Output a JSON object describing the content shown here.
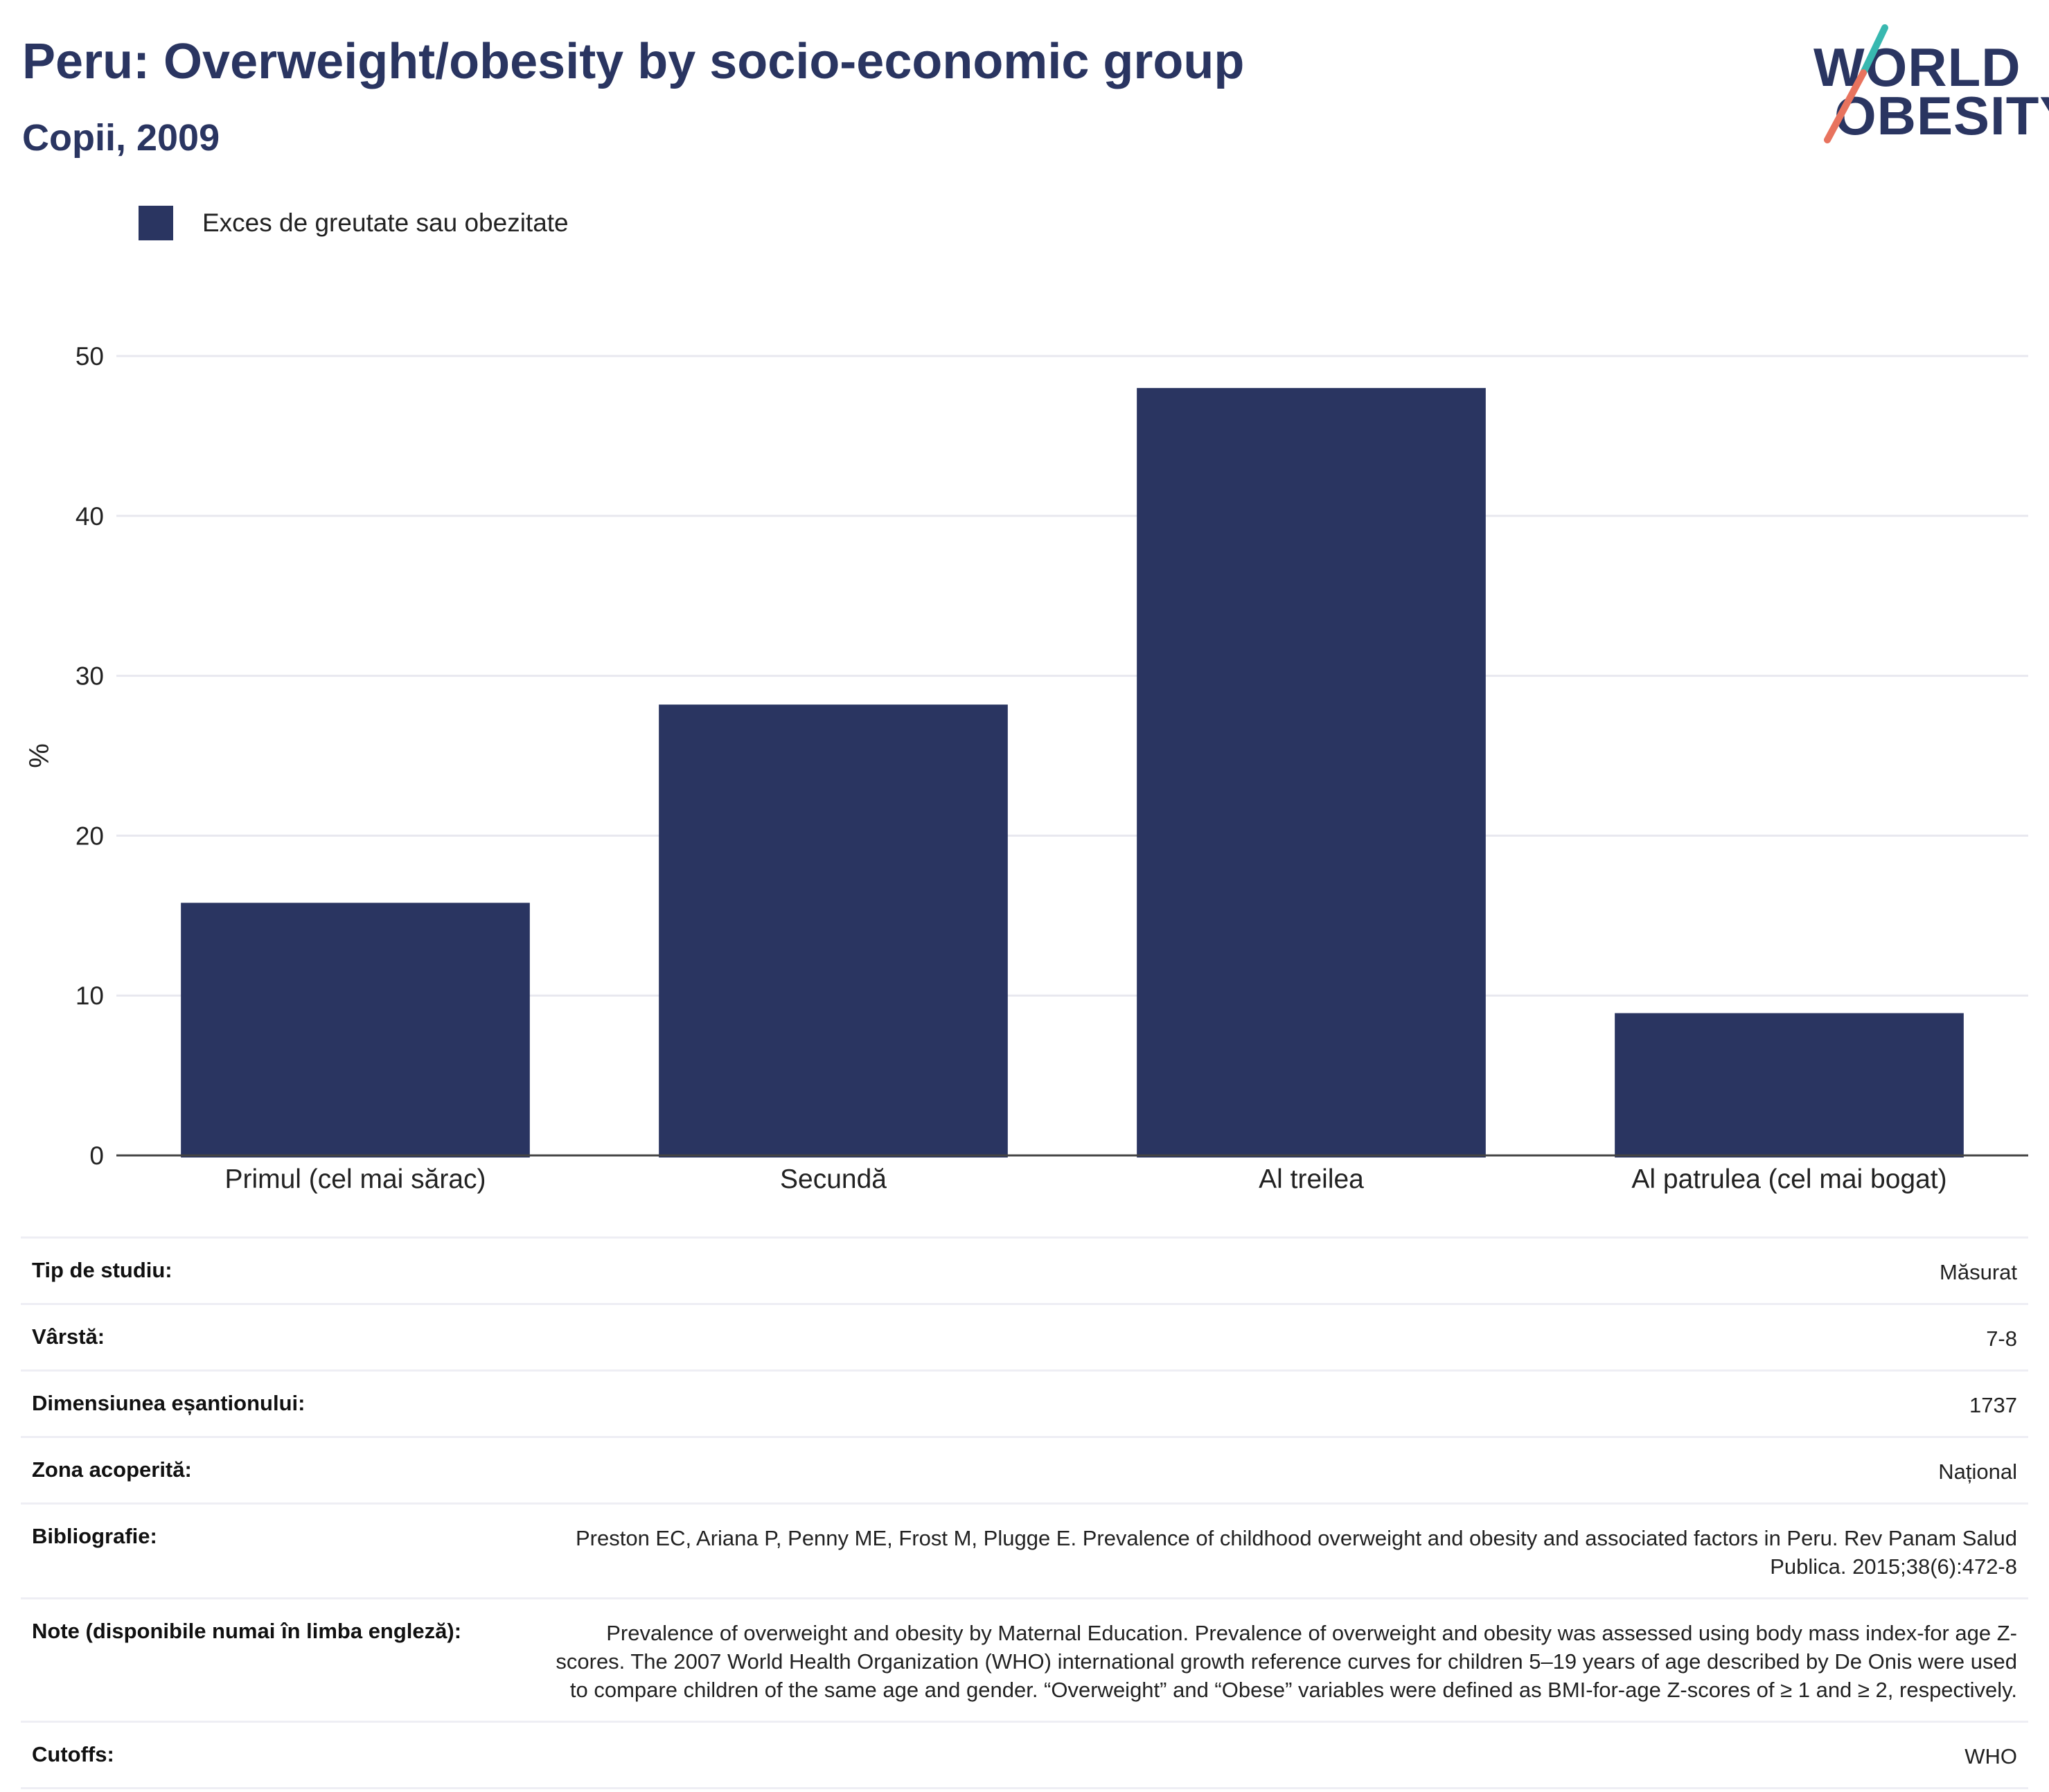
{
  "header": {
    "title": "Peru: Overweight/obesity by socio-economic group",
    "subtitle": "Copii, 2009"
  },
  "logo": {
    "line1": "WORLD",
    "line2": "OBESITY",
    "accent_colors": [
      "#38b8b0",
      "#e8735e"
    ]
  },
  "legend": {
    "label": "Exces de greutate sau obezitate",
    "color": "#2a3561"
  },
  "chart_data": {
    "type": "bar",
    "categories": [
      "Primul (cel mai sărac)",
      "Secundă",
      "Al treilea",
      "Al patrulea (cel mai bogat)"
    ],
    "series": [
      {
        "name": "Exces de greutate sau obezitate",
        "values": [
          15.8,
          28.2,
          48.0,
          8.9
        ],
        "color": "#2a3561"
      }
    ],
    "ylabel": "%",
    "ylim": [
      0,
      50
    ],
    "yticks": [
      0,
      10,
      20,
      30,
      40,
      50
    ],
    "grid": true,
    "legend_position": "top-left"
  },
  "info": {
    "rows": [
      {
        "label": "Tip de studiu:",
        "value": "Măsurat"
      },
      {
        "label": "Vârstă:",
        "value": "7-8"
      },
      {
        "label": "Dimensiunea eșantionului:",
        "value": "1737"
      },
      {
        "label": "Zona acoperită:",
        "value": "Național"
      },
      {
        "label": "Bibliografie:",
        "value": "Preston EC, Ariana P, Penny ME, Frost M, Plugge E. Prevalence of childhood overweight and obesity and associated factors in Peru. Rev Panam Salud Publica. 2015;38(6):472-8"
      },
      {
        "label": "Note (disponibile numai în limba engleză):",
        "value": "Prevalence of overweight and obesity by Maternal Education. Prevalence of overweight and obesity was assessed using body mass index-for age Z-scores. The 2007 World Health Organization (WHO) international growth reference curves for children 5–19 years of age described by De Onis were used to compare children of the same age and gender. “Overweight” and “Obese” variables were defined as BMI-for-age Z-scores of ≥ 1 and ≥ 2, respectively."
      },
      {
        "label": "Cutoffs:",
        "value": "WHO"
      }
    ]
  }
}
